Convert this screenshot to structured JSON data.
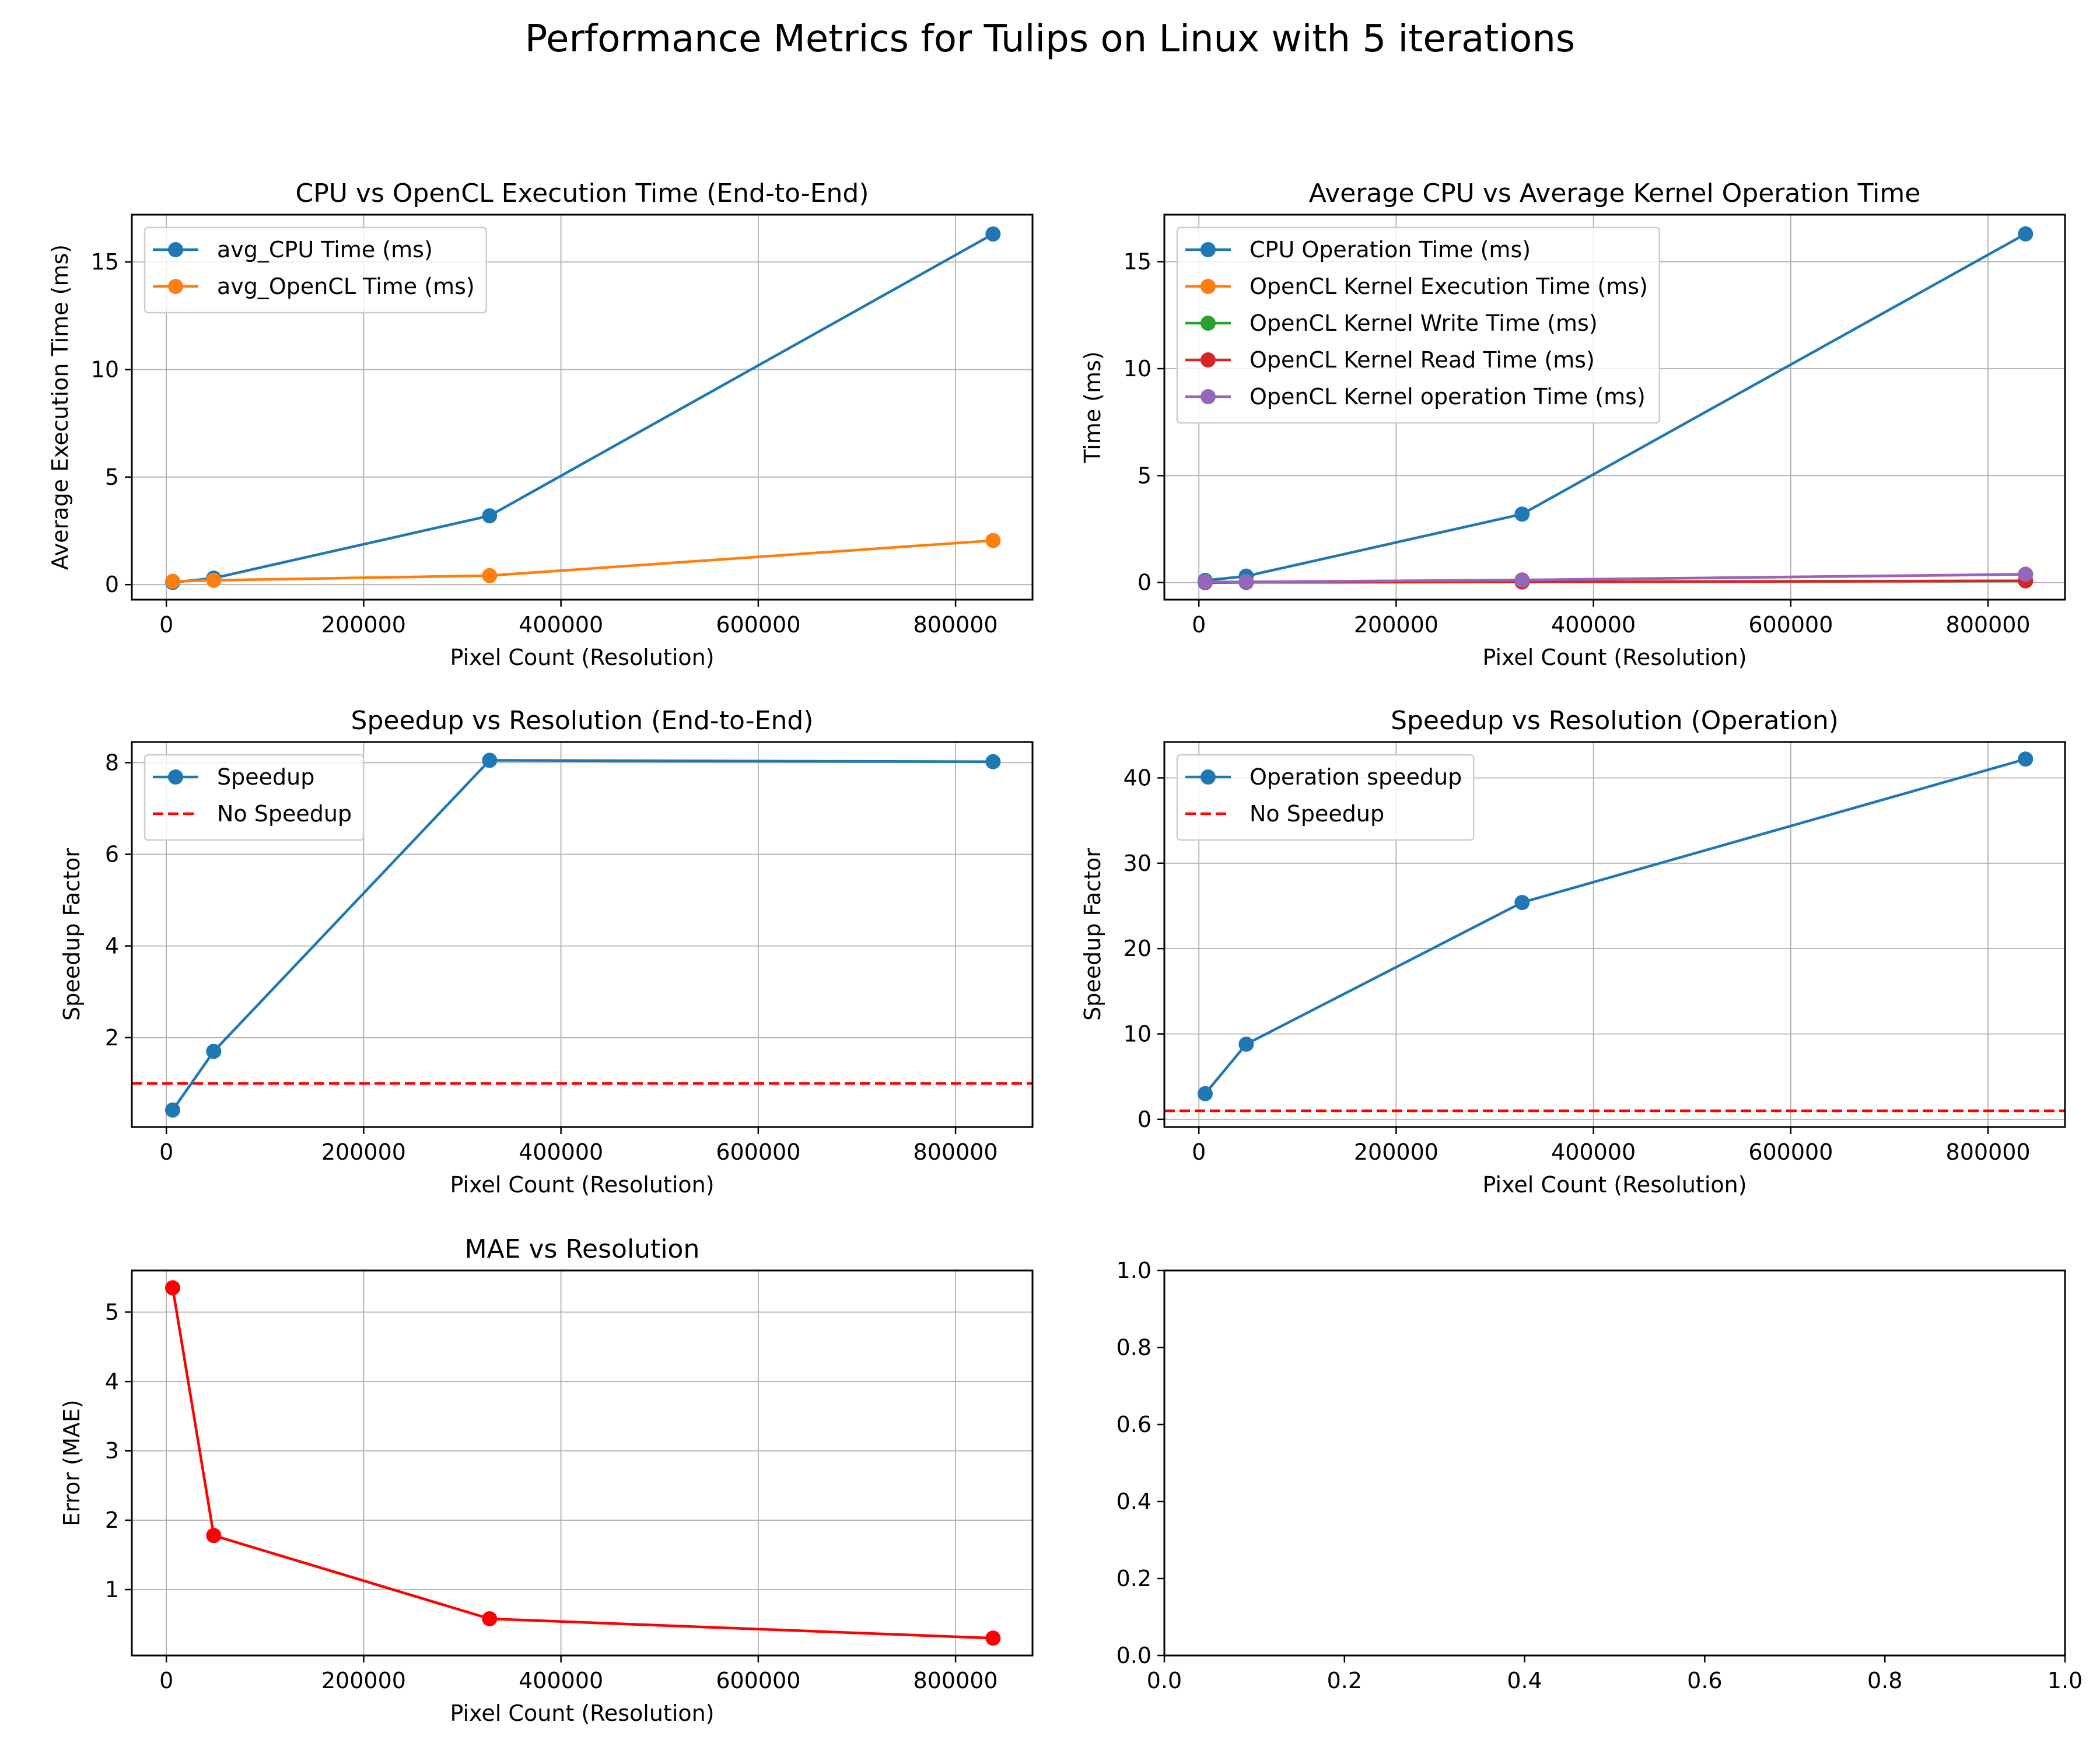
{
  "figure_title": "Performance Metrics for Tulips on Linux with 5 iterations",
  "colors": {
    "blue": "#1f77b4",
    "orange": "#ff7f0e",
    "green": "#2ca02c",
    "red": "#d62728",
    "purple": "#9467bd",
    "pure_red": "#ff0000"
  },
  "chart_data": [
    {
      "type": "line",
      "title": "CPU vs OpenCL Execution Time (End-to-End)",
      "xlabel": "Pixel Count (Resolution)",
      "ylabel": "Average Execution Time (ms)",
      "xlim": [
        -35000,
        878000
      ],
      "ylim": [
        -0.7,
        17.2
      ],
      "xticks": [
        0,
        200000,
        400000,
        600000,
        800000
      ],
      "yticks": [
        0,
        5,
        10,
        15
      ],
      "grid": true,
      "legend_position": "upper left",
      "series": [
        {
          "name": "avg_CPU Time (ms)",
          "color": "#1f77b4",
          "marker": "o",
          "x": [
            6400,
            48000,
            327680,
            838000
          ],
          "y": [
            0.1,
            0.3,
            3.2,
            16.3
          ]
        },
        {
          "name": "avg_OpenCL Time (ms)",
          "color": "#ff7f0e",
          "marker": "o",
          "x": [
            6400,
            48000,
            327680,
            838000
          ],
          "y": [
            0.15,
            0.2,
            0.42,
            2.05
          ]
        }
      ]
    },
    {
      "type": "line",
      "title": "Average CPU vs Average Kernel Operation Time",
      "xlabel": "Pixel Count (Resolution)",
      "ylabel": "Time (ms)",
      "xlim": [
        -35000,
        878000
      ],
      "ylim": [
        -0.8,
        17.2
      ],
      "xticks": [
        0,
        200000,
        400000,
        600000,
        800000
      ],
      "yticks": [
        0,
        5,
        10,
        15
      ],
      "grid": true,
      "legend_position": "upper left",
      "series": [
        {
          "name": "CPU Operation Time (ms)",
          "color": "#1f77b4",
          "marker": "o",
          "x": [
            6400,
            48000,
            327680,
            838000
          ],
          "y": [
            0.1,
            0.3,
            3.2,
            16.3
          ]
        },
        {
          "name": "OpenCL Kernel Execution Time (ms)",
          "color": "#ff7f0e",
          "marker": "o",
          "x": [
            6400,
            48000,
            327680,
            838000
          ],
          "y": [
            0.03,
            0.03,
            0.12,
            0.38
          ]
        },
        {
          "name": "OpenCL Kernel Write Time (ms)",
          "color": "#2ca02c",
          "marker": "o",
          "x": [
            6400,
            48000,
            327680,
            838000
          ],
          "y": [
            0.0,
            0.01,
            0.03,
            0.08
          ]
        },
        {
          "name": "OpenCL Kernel Read Time (ms)",
          "color": "#d62728",
          "marker": "o",
          "x": [
            6400,
            48000,
            327680,
            838000
          ],
          "y": [
            0.0,
            0.01,
            0.03,
            0.08
          ]
        },
        {
          "name": "OpenCL Kernel operation Time (ms)",
          "color": "#9467bd",
          "marker": "o",
          "x": [
            6400,
            48000,
            327680,
            838000
          ],
          "y": [
            0.03,
            0.03,
            0.12,
            0.39
          ]
        }
      ]
    },
    {
      "type": "line",
      "title": "Speedup vs Resolution (End-to-End)",
      "xlabel": "Pixel Count (Resolution)",
      "ylabel": "Speedup Factor",
      "xlim": [
        -35000,
        878000
      ],
      "ylim": [
        0.05,
        8.45
      ],
      "xticks": [
        0,
        200000,
        400000,
        600000,
        800000
      ],
      "yticks": [
        2,
        4,
        6,
        8
      ],
      "grid": true,
      "legend_position": "upper left",
      "series": [
        {
          "name": "Speedup",
          "color": "#1f77b4",
          "marker": "o",
          "x": [
            6400,
            48000,
            327680,
            838000
          ],
          "y": [
            0.42,
            1.7,
            8.05,
            8.02
          ]
        }
      ],
      "hlines": [
        {
          "name": "No Speedup",
          "color": "#ff0000",
          "y": 1.0,
          "linestyle": "dashed"
        }
      ]
    },
    {
      "type": "line",
      "title": "Speedup vs Resolution (Operation)",
      "xlabel": "Pixel Count (Resolution)",
      "ylabel": "Speedup Factor",
      "xlim": [
        -35000,
        878000
      ],
      "ylim": [
        -0.9,
        44.2
      ],
      "xticks": [
        0,
        200000,
        400000,
        600000,
        800000
      ],
      "yticks": [
        0,
        10,
        20,
        30,
        40
      ],
      "grid": true,
      "legend_position": "upper left",
      "series": [
        {
          "name": "Operation speedup",
          "color": "#1f77b4",
          "marker": "o",
          "x": [
            6400,
            48000,
            327680,
            838000
          ],
          "y": [
            3.0,
            8.8,
            25.4,
            42.2
          ]
        }
      ],
      "hlines": [
        {
          "name": "No Speedup",
          "color": "#ff0000",
          "y": 1.0,
          "linestyle": "dashed"
        }
      ]
    },
    {
      "type": "line",
      "title": "MAE vs Resolution",
      "xlabel": "Pixel Count (Resolution)",
      "ylabel": "Error (MAE)",
      "xlim": [
        -35000,
        878000
      ],
      "ylim": [
        0.05,
        5.6
      ],
      "xticks": [
        0,
        200000,
        400000,
        600000,
        800000
      ],
      "yticks": [
        1,
        2,
        3,
        4,
        5
      ],
      "grid": true,
      "series": [
        {
          "color": "#ff0000",
          "marker": "o",
          "x": [
            6400,
            48000,
            327680,
            838000
          ],
          "y": [
            5.35,
            1.78,
            0.58,
            0.3
          ]
        }
      ]
    },
    {
      "type": "line",
      "title": "",
      "xlabel": "",
      "ylabel": "",
      "xlim": [
        0,
        1
      ],
      "ylim": [
        0,
        1
      ],
      "xticks": [
        0.0,
        0.2,
        0.4,
        0.6,
        0.8,
        1.0
      ],
      "yticks": [
        0.0,
        0.2,
        0.4,
        0.6,
        0.8,
        1.0
      ],
      "tick_format": "1dp",
      "grid": false,
      "series": []
    }
  ]
}
